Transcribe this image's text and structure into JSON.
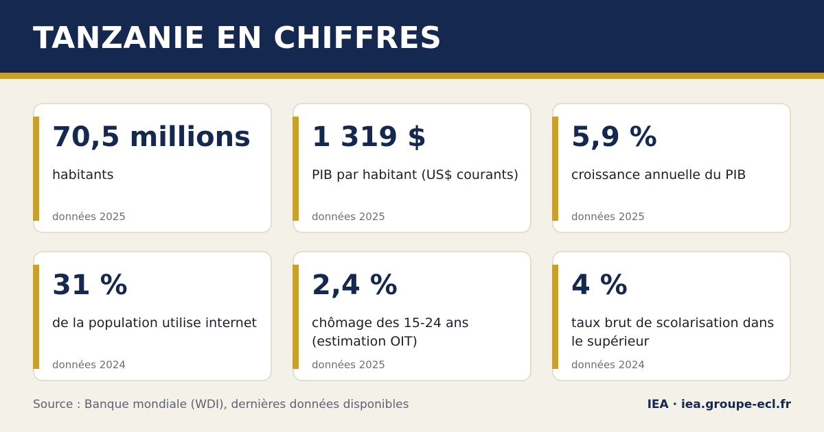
{
  "header": {
    "title": "TANZANIE EN CHIFFRES"
  },
  "colors": {
    "navy": "#152850",
    "gold": "#c9a02b",
    "background": "#f4f1e9"
  },
  "cards": [
    {
      "value": "70,5 millions",
      "label": "habitants",
      "year": "données 2025"
    },
    {
      "value": "1 319 $",
      "label": "PIB par habitant (US$ courants)",
      "year": "données 2025"
    },
    {
      "value": "5,9 %",
      "label": "croissance annuelle du PIB",
      "year": "données 2025"
    },
    {
      "value": "31 %",
      "label": "de la population utilise internet",
      "year": "données 2024"
    },
    {
      "value": "2,4 %",
      "label": "chômage des 15-24 ans (estimation OIT)",
      "year": "données 2025"
    },
    {
      "value": "4 %",
      "label": "taux brut de scolarisation dans le supérieur",
      "year": "données 2024"
    }
  ],
  "footer": {
    "source": "Source : Banque mondiale (WDI), dernières données disponibles",
    "brand": "IEA · iea.groupe-ecl.fr"
  }
}
